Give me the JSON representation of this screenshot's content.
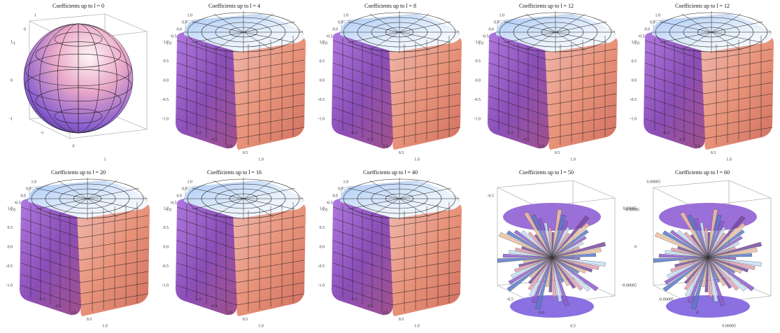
{
  "panels": [
    {
      "title": "Coefficients up to l = 0",
      "ticks": {
        "top": [
          "-1",
          "0",
          "1"
        ],
        "side": [
          "1",
          "0",
          "-1"
        ],
        "bottom": [
          "-1",
          "0",
          "1"
        ]
      }
    },
    {
      "title": "Coefficients up to l = 4",
      "ticks": {
        "top": [
          "-1.0",
          "-0.5",
          "0.0",
          "0.5",
          "1.0"
        ],
        "side": [
          "1.0",
          "0.5",
          "0.0",
          "-0.5",
          "-1.0"
        ],
        "bottom": [
          "-1.0",
          "-0.5",
          "0.0",
          "0.5",
          "1.0"
        ]
      }
    },
    {
      "title": "Coefficients up to l = 8",
      "ticks": {
        "top": [
          "-1.0",
          "-0.5",
          "0.0",
          "0.5",
          "1.0"
        ],
        "side": [
          "1.0",
          "0.5",
          "0.0",
          "-0.5",
          "-1.0"
        ],
        "bottom": [
          "-1.0",
          "-0.5",
          "0.0",
          "0.5",
          "1.0"
        ]
      }
    },
    {
      "title": "Coefficients up to l = 12",
      "ticks": {
        "top": [
          "-1.0",
          "-0.5",
          "0.0",
          "0.5",
          "1.0"
        ],
        "side": [
          "1.0",
          "0.5",
          "0.0",
          "-0.5",
          "-1.0"
        ],
        "bottom": [
          "-1.0",
          "-0.5",
          "0.0",
          "0.5",
          "1.0"
        ]
      }
    },
    {
      "title": "Coefficients up to l = 12",
      "ticks": {
        "top": [
          "-1.0",
          "-0.5",
          "0.0",
          "0.5",
          "1.0"
        ],
        "side": [
          "1.0",
          "0.5",
          "0.0",
          "-0.5",
          "-1.0"
        ],
        "bottom": [
          "-1.0",
          "-0.5",
          "0.0",
          "0.5",
          "1.0"
        ]
      }
    },
    {
      "title": "Coefficients up to l = 20",
      "ticks": {
        "top": [
          "-1.0",
          "-0.5",
          "0.0",
          "0.5",
          "1.0"
        ],
        "side": [
          "1.0",
          "0.5",
          "0.0",
          "-0.5",
          "-1.0"
        ],
        "bottom": [
          "-1.0",
          "-0.5",
          "0.0",
          "0.5",
          "1.0"
        ]
      }
    },
    {
      "title": "Coefficients up to l = 16",
      "ticks": {
        "top": [
          "-1.0",
          "-0.5",
          "0.0",
          "0.5",
          "1.0"
        ],
        "side": [
          "1.0",
          "0.5",
          "0.0",
          "-0.5",
          "-1.0"
        ],
        "bottom": [
          "-1.0",
          "-0.5",
          "0.0",
          "0.5",
          "1.0"
        ]
      }
    },
    {
      "title": "Coefficients up to l = 40",
      "ticks": {
        "top": [
          "-1.0",
          "-0.5",
          "0.0",
          "0.5",
          "1.0"
        ],
        "side": [
          "1.0",
          "0.5",
          "0.0",
          "-0.5",
          "-1.0"
        ],
        "bottom": [
          "-1.0",
          "-0.5",
          "0.0",
          "0.5",
          "1.0"
        ]
      }
    },
    {
      "title": "Coefficients up to l = 50",
      "ticks": {
        "top": [
          "-0.5"
        ],
        "side": [],
        "bottom": [
          "-0.5",
          "0.0",
          "0.5"
        ]
      }
    },
    {
      "title": "Coefficients up to l = 60",
      "ticks": {
        "top": [
          "-0.00005",
          "0.00005"
        ],
        "side": [
          "0.00005",
          "0",
          "-0.00005"
        ],
        "bottom": [
          "-0.00005",
          "0",
          "0.00005"
        ]
      }
    }
  ]
}
